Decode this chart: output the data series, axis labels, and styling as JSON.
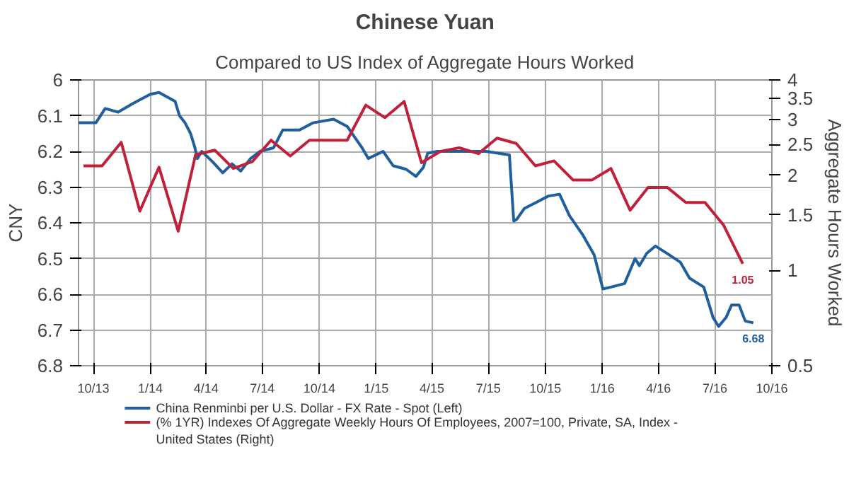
{
  "chart_data": {
    "type": "line",
    "title": "Chinese Yuan",
    "subtitle": "Compared to US Index of Aggregate Hours Worked",
    "ylabel": "CNY",
    "y2label": "Aggregate Hours Worked",
    "xlim": [
      "2013-09-07",
      "2016-10-01"
    ],
    "xticks": [
      {
        "value": "2013-10-01",
        "label": "10/13"
      },
      {
        "value": "2014-01-01",
        "label": "1/14"
      },
      {
        "value": "2014-04-01",
        "label": "4/14"
      },
      {
        "value": "2014-07-01",
        "label": "7/14"
      },
      {
        "value": "2014-10-01",
        "label": "10/14"
      },
      {
        "value": "2015-01-01",
        "label": "1/15"
      },
      {
        "value": "2015-04-01",
        "label": "4/15"
      },
      {
        "value": "2015-07-01",
        "label": "7/15"
      },
      {
        "value": "2015-10-01",
        "label": "10/15"
      },
      {
        "value": "2016-01-01",
        "label": "1/16"
      },
      {
        "value": "2016-04-01",
        "label": "4/16"
      },
      {
        "value": "2016-07-01",
        "label": "7/16"
      },
      {
        "value": "2016-10-01",
        "label": "10/16"
      }
    ],
    "ylim": [
      6.8,
      6
    ],
    "yticks": [
      6,
      6.1,
      6.2,
      6.3,
      6.4,
      6.5,
      6.6,
      6.7,
      6.8
    ],
    "y2lim": [
      0.5,
      4
    ],
    "y2ticks": [
      0.5,
      1,
      1.5,
      2,
      2.5,
      3,
      3.5,
      4
    ],
    "log": "y2",
    "grid": true,
    "legend": "bottom",
    "series": [
      {
        "name": "China Renminbi per U.S. Dollar - FX Rate - Spot  (Left)",
        "color": "#1f5f9e",
        "axis": "y",
        "x": [
          "2013-09-07",
          "2013-10-05",
          "2013-10-20",
          "2013-11-10",
          "2013-12-05",
          "2014-01-01",
          "2014-01-15",
          "2014-02-10",
          "2014-02-17",
          "2014-02-26",
          "2014-03-07",
          "2014-03-14",
          "2014-03-18",
          "2014-03-25",
          "2014-04-12",
          "2014-04-28",
          "2014-05-13",
          "2014-05-27",
          "2014-06-12",
          "2014-06-27",
          "2014-07-19",
          "2014-08-03",
          "2014-08-30",
          "2014-09-21",
          "2014-10-24",
          "2014-11-15",
          "2014-12-09",
          "2014-12-19",
          "2015-01-12",
          "2015-01-28",
          "2015-02-18",
          "2015-03-06",
          "2015-03-18",
          "2015-03-25",
          "2015-04-10",
          "2015-06-27",
          "2015-08-04",
          "2015-08-11",
          "2015-08-16",
          "2015-08-28",
          "2015-10-06",
          "2015-10-24",
          "2015-11-09",
          "2015-12-01",
          "2015-12-19",
          "2016-01-02",
          "2016-01-15",
          "2016-02-06",
          "2016-02-23",
          "2016-03-01",
          "2016-03-13",
          "2016-03-27",
          "2016-04-14",
          "2016-05-06",
          "2016-05-21",
          "2016-06-13",
          "2016-06-28",
          "2016-07-07",
          "2016-07-19",
          "2016-07-28",
          "2016-08-09",
          "2016-08-19",
          "2016-09-01"
        ],
        "values": [
          6.12,
          6.12,
          6.08,
          6.09,
          6.065,
          6.04,
          6.035,
          6.06,
          6.1,
          6.12,
          6.15,
          6.19,
          6.22,
          6.2,
          6.23,
          6.26,
          6.235,
          6.255,
          6.22,
          6.2,
          6.19,
          6.14,
          6.14,
          6.12,
          6.11,
          6.13,
          6.19,
          6.22,
          6.2,
          6.24,
          6.25,
          6.27,
          6.245,
          6.205,
          6.2,
          6.2,
          6.21,
          6.395,
          6.39,
          6.36,
          6.325,
          6.32,
          6.38,
          6.435,
          6.49,
          6.585,
          6.58,
          6.57,
          6.5,
          6.52,
          6.485,
          6.465,
          6.485,
          6.51,
          6.555,
          6.58,
          6.665,
          6.69,
          6.665,
          6.63,
          6.63,
          6.675,
          6.68
        ],
        "value_labels": [
          null,
          null,
          null,
          null,
          null,
          null,
          null,
          null,
          null,
          null,
          null,
          null,
          null,
          null,
          null,
          null,
          null,
          null,
          null,
          null,
          null,
          null,
          null,
          null,
          null,
          null,
          null,
          null,
          null,
          null,
          null,
          null,
          null,
          null,
          null,
          null,
          null,
          null,
          null,
          null,
          null,
          null,
          null,
          null,
          null,
          null,
          null,
          null,
          null,
          null,
          null,
          null,
          null,
          null,
          null,
          null,
          null,
          null,
          null,
          null,
          null,
          null,
          "6.68"
        ]
      },
      {
        "name": "(% 1YR) Indexes Of Aggregate Weekly Hours Of Employees, 2007=100, Private, SA, Index - United States  (Right)",
        "color": "#c0213a",
        "axis": "y2",
        "x": [
          "2013-09-15",
          "2013-10-15",
          "2013-11-15",
          "2013-12-15",
          "2014-01-15",
          "2014-02-15",
          "2014-03-15",
          "2014-04-15",
          "2014-05-15",
          "2014-06-15",
          "2014-07-15",
          "2014-08-15",
          "2014-09-15",
          "2014-10-15",
          "2014-11-15",
          "2014-12-15",
          "2015-01-15",
          "2015-02-15",
          "2015-03-15",
          "2015-04-15",
          "2015-05-15",
          "2015-06-15",
          "2015-07-15",
          "2015-08-15",
          "2015-09-15",
          "2015-10-15",
          "2015-11-15",
          "2015-12-15",
          "2016-01-15",
          "2016-02-15",
          "2016-03-15",
          "2016-04-15",
          "2016-05-15",
          "2016-06-15",
          "2016-07-15",
          "2016-08-15"
        ],
        "values": [
          2.14,
          2.14,
          2.54,
          1.54,
          2.12,
          1.33,
          2.32,
          2.4,
          2.1,
          2.21,
          2.58,
          2.3,
          2.58,
          2.58,
          2.58,
          3.33,
          3.04,
          3.42,
          2.19,
          2.38,
          2.44,
          2.34,
          2.62,
          2.52,
          2.14,
          2.22,
          1.93,
          1.93,
          2.1,
          1.55,
          1.83,
          1.83,
          1.64,
          1.64,
          1.39,
          1.05
        ],
        "value_labels": [
          null,
          null,
          null,
          null,
          null,
          null,
          null,
          null,
          null,
          null,
          null,
          null,
          null,
          null,
          null,
          null,
          null,
          null,
          null,
          null,
          null,
          null,
          null,
          null,
          null,
          null,
          null,
          null,
          null,
          null,
          null,
          null,
          null,
          null,
          null,
          "1.05"
        ]
      }
    ]
  }
}
